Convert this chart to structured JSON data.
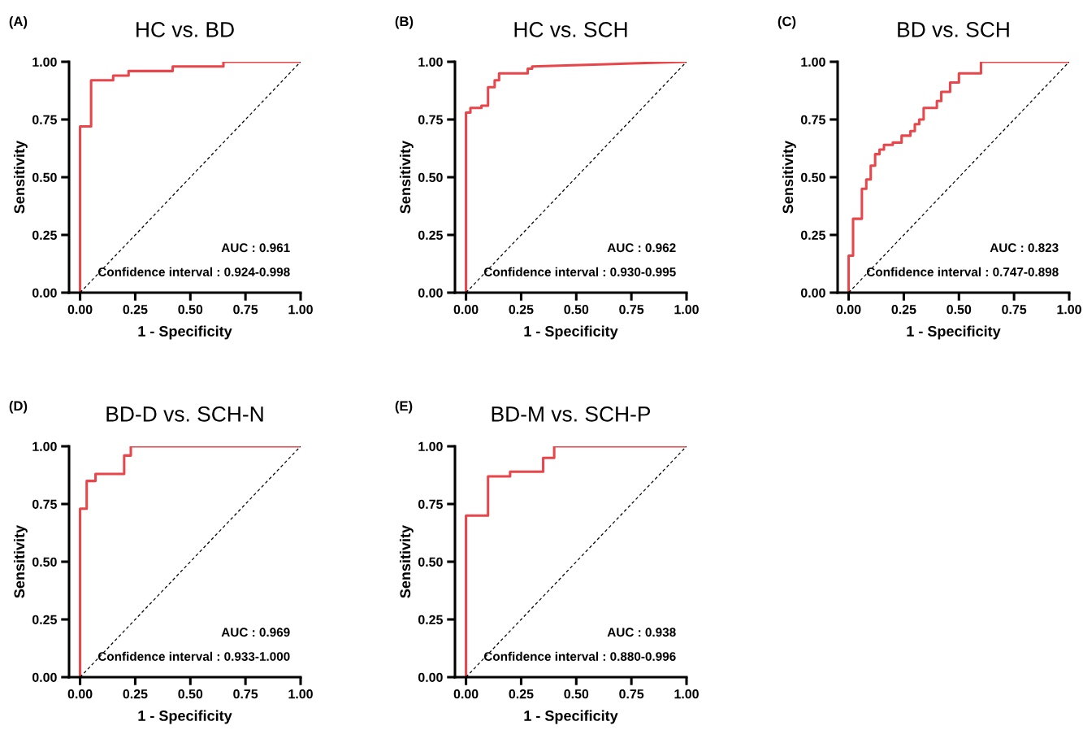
{
  "chart_data": [
    {
      "type": "line",
      "title": "HC vs. BD",
      "xlabel": "1 - Specificity",
      "ylabel": "Sensitivity",
      "xlim": [
        -0.05,
        1.0
      ],
      "ylim": [
        0,
        1.0
      ],
      "xticks": [
        {
          "value": 0,
          "label": "0.00"
        },
        {
          "value": 0.25,
          "label": "0.25"
        },
        {
          "value": 0.5,
          "label": "0.50"
        },
        {
          "value": 0.75,
          "label": "0.75"
        },
        {
          "value": 1,
          "label": "1.00"
        }
      ],
      "yticks": [
        {
          "value": 0,
          "label": "0.00"
        },
        {
          "value": 0.25,
          "label": "0.25"
        },
        {
          "value": 0.5,
          "label": "0.50"
        },
        {
          "value": 0.75,
          "label": "0.75"
        },
        {
          "value": 1,
          "label": "1.00"
        }
      ],
      "annotations": [
        "(A)",
        "AUC : 0.961",
        "Confidence interval : 0.924-0.998"
      ],
      "series": [
        {
          "color": "#e8464a",
          "line_style": "solid",
          "x": [
            0,
            0,
            0.05,
            0.05,
            0.15,
            0.15,
            0.22,
            0.22,
            0.42,
            0.42,
            0.65,
            0.65,
            1
          ],
          "values": [
            0,
            0.72,
            0.72,
            0.92,
            0.92,
            0.94,
            0.94,
            0.96,
            0.96,
            0.98,
            0.98,
            1.0,
            1.0
          ]
        },
        {
          "color": "#000000",
          "line_style": "dashed",
          "x": [
            0,
            1
          ],
          "values": [
            0,
            1
          ]
        }
      ]
    },
    {
      "type": "line",
      "title": "HC vs. SCH",
      "xlabel": "1 - Specificity",
      "ylabel": "Sensitivity",
      "xlim": [
        -0.05,
        1.0
      ],
      "ylim": [
        0,
        1.0
      ],
      "xticks": [
        {
          "value": 0,
          "label": "0.00"
        },
        {
          "value": 0.25,
          "label": "0.25"
        },
        {
          "value": 0.5,
          "label": "0.50"
        },
        {
          "value": 0.75,
          "label": "0.75"
        },
        {
          "value": 1,
          "label": "1.00"
        }
      ],
      "yticks": [
        {
          "value": 0,
          "label": "0.00"
        },
        {
          "value": 0.25,
          "label": "0.25"
        },
        {
          "value": 0.5,
          "label": "0.50"
        },
        {
          "value": 0.75,
          "label": "0.75"
        },
        {
          "value": 1,
          "label": "1.00"
        }
      ],
      "annotations": [
        "(B)",
        "AUC : 0.962",
        "Confidence interval : 0.930-0.995"
      ],
      "series": [
        {
          "color": "#e8464a",
          "line_style": "solid",
          "x": [
            0,
            0,
            0.02,
            0.02,
            0.07,
            0.07,
            0.1,
            0.1,
            0.13,
            0.13,
            0.15,
            0.15,
            0.28,
            0.28,
            0.3,
            0.3,
            1
          ],
          "values": [
            0,
            0.78,
            0.78,
            0.8,
            0.8,
            0.81,
            0.81,
            0.89,
            0.89,
            0.92,
            0.92,
            0.95,
            0.95,
            0.97,
            0.97,
            0.98,
            1.0
          ]
        },
        {
          "color": "#000000",
          "line_style": "dashed",
          "x": [
            0,
            1
          ],
          "values": [
            0,
            1
          ]
        }
      ]
    },
    {
      "type": "line",
      "title": "BD vs. SCH",
      "xlabel": "1 - Specificity",
      "ylabel": "Sensitivity",
      "xlim": [
        -0.05,
        1.0
      ],
      "ylim": [
        0,
        1.0
      ],
      "xticks": [
        {
          "value": 0,
          "label": "0.00"
        },
        {
          "value": 0.25,
          "label": "0.25"
        },
        {
          "value": 0.5,
          "label": "0.50"
        },
        {
          "value": 0.75,
          "label": "0.75"
        },
        {
          "value": 1,
          "label": "1.00"
        }
      ],
      "yticks": [
        {
          "value": 0,
          "label": "0.00"
        },
        {
          "value": 0.25,
          "label": "0.25"
        },
        {
          "value": 0.5,
          "label": "0.50"
        },
        {
          "value": 0.75,
          "label": "0.75"
        },
        {
          "value": 1,
          "label": "1.00"
        }
      ],
      "annotations": [
        "(C)",
        "AUC : 0.823",
        "Confidence interval : 0.747-0.898"
      ],
      "series": [
        {
          "color": "#e8464a",
          "line_style": "solid",
          "x": [
            0,
            0,
            0.02,
            0.02,
            0.06,
            0.06,
            0.08,
            0.08,
            0.1,
            0.1,
            0.12,
            0.12,
            0.14,
            0.14,
            0.16,
            0.16,
            0.2,
            0.2,
            0.24,
            0.24,
            0.28,
            0.28,
            0.3,
            0.3,
            0.32,
            0.32,
            0.34,
            0.34,
            0.4,
            0.4,
            0.42,
            0.42,
            0.46,
            0.46,
            0.5,
            0.5,
            0.6,
            0.6,
            1
          ],
          "values": [
            0,
            0.16,
            0.16,
            0.32,
            0.32,
            0.45,
            0.45,
            0.49,
            0.49,
            0.55,
            0.55,
            0.6,
            0.6,
            0.62,
            0.62,
            0.64,
            0.64,
            0.65,
            0.65,
            0.68,
            0.68,
            0.7,
            0.7,
            0.73,
            0.73,
            0.75,
            0.75,
            0.8,
            0.8,
            0.83,
            0.83,
            0.87,
            0.87,
            0.91,
            0.91,
            0.95,
            0.95,
            1.0,
            1.0
          ]
        },
        {
          "color": "#000000",
          "line_style": "dashed",
          "x": [
            0,
            1
          ],
          "values": [
            0,
            1
          ]
        }
      ]
    },
    {
      "type": "line",
      "title": "BD-D vs. SCH-N",
      "xlabel": "1 - Specificity",
      "ylabel": "Sensitivity",
      "xlim": [
        -0.05,
        1.0
      ],
      "ylim": [
        0,
        1.0
      ],
      "xticks": [
        {
          "value": 0,
          "label": "0.00"
        },
        {
          "value": 0.25,
          "label": "0.25"
        },
        {
          "value": 0.5,
          "label": "0.50"
        },
        {
          "value": 0.75,
          "label": "0.75"
        },
        {
          "value": 1,
          "label": "1.00"
        }
      ],
      "yticks": [
        {
          "value": 0,
          "label": "0.00"
        },
        {
          "value": 0.25,
          "label": "0.25"
        },
        {
          "value": 0.5,
          "label": "0.50"
        },
        {
          "value": 0.75,
          "label": "0.75"
        },
        {
          "value": 1,
          "label": "1.00"
        }
      ],
      "annotations": [
        "(D)",
        "AUC : 0.969",
        "Confidence interval : 0.933-1.000"
      ],
      "series": [
        {
          "color": "#e8464a",
          "line_style": "solid",
          "x": [
            0,
            0,
            0.03,
            0.03,
            0.07,
            0.07,
            0.2,
            0.2,
            0.23,
            0.23,
            1
          ],
          "values": [
            0,
            0.73,
            0.73,
            0.85,
            0.85,
            0.88,
            0.88,
            0.96,
            0.96,
            1.0,
            1.0
          ]
        },
        {
          "color": "#000000",
          "line_style": "dashed",
          "x": [
            0,
            1
          ],
          "values": [
            0,
            1
          ]
        }
      ]
    },
    {
      "type": "line",
      "title": "BD-M vs. SCH-P",
      "xlabel": "1 - Specificity",
      "ylabel": "Sensitivity",
      "xlim": [
        -0.05,
        1.0
      ],
      "ylim": [
        0,
        1.0
      ],
      "xticks": [
        {
          "value": 0,
          "label": "0.00"
        },
        {
          "value": 0.25,
          "label": "0.25"
        },
        {
          "value": 0.5,
          "label": "0.50"
        },
        {
          "value": 0.75,
          "label": "0.75"
        },
        {
          "value": 1,
          "label": "1.00"
        }
      ],
      "yticks": [
        {
          "value": 0,
          "label": "0.00"
        },
        {
          "value": 0.25,
          "label": "0.25"
        },
        {
          "value": 0.5,
          "label": "0.50"
        },
        {
          "value": 0.75,
          "label": "0.75"
        },
        {
          "value": 1,
          "label": "1.00"
        }
      ],
      "annotations": [
        "(E)",
        "AUC : 0.938",
        "Confidence interval : 0.880-0.996"
      ],
      "series": [
        {
          "color": "#e8464a",
          "line_style": "solid",
          "x": [
            0,
            0,
            0.1,
            0.1,
            0.2,
            0.2,
            0.35,
            0.35,
            0.4,
            0.4,
            1
          ],
          "values": [
            0,
            0.7,
            0.7,
            0.87,
            0.87,
            0.89,
            0.89,
            0.95,
            0.95,
            1.0,
            1.0
          ]
        },
        {
          "color": "#000000",
          "line_style": "dashed",
          "x": [
            0,
            1
          ],
          "values": [
            0,
            1
          ]
        }
      ]
    }
  ]
}
